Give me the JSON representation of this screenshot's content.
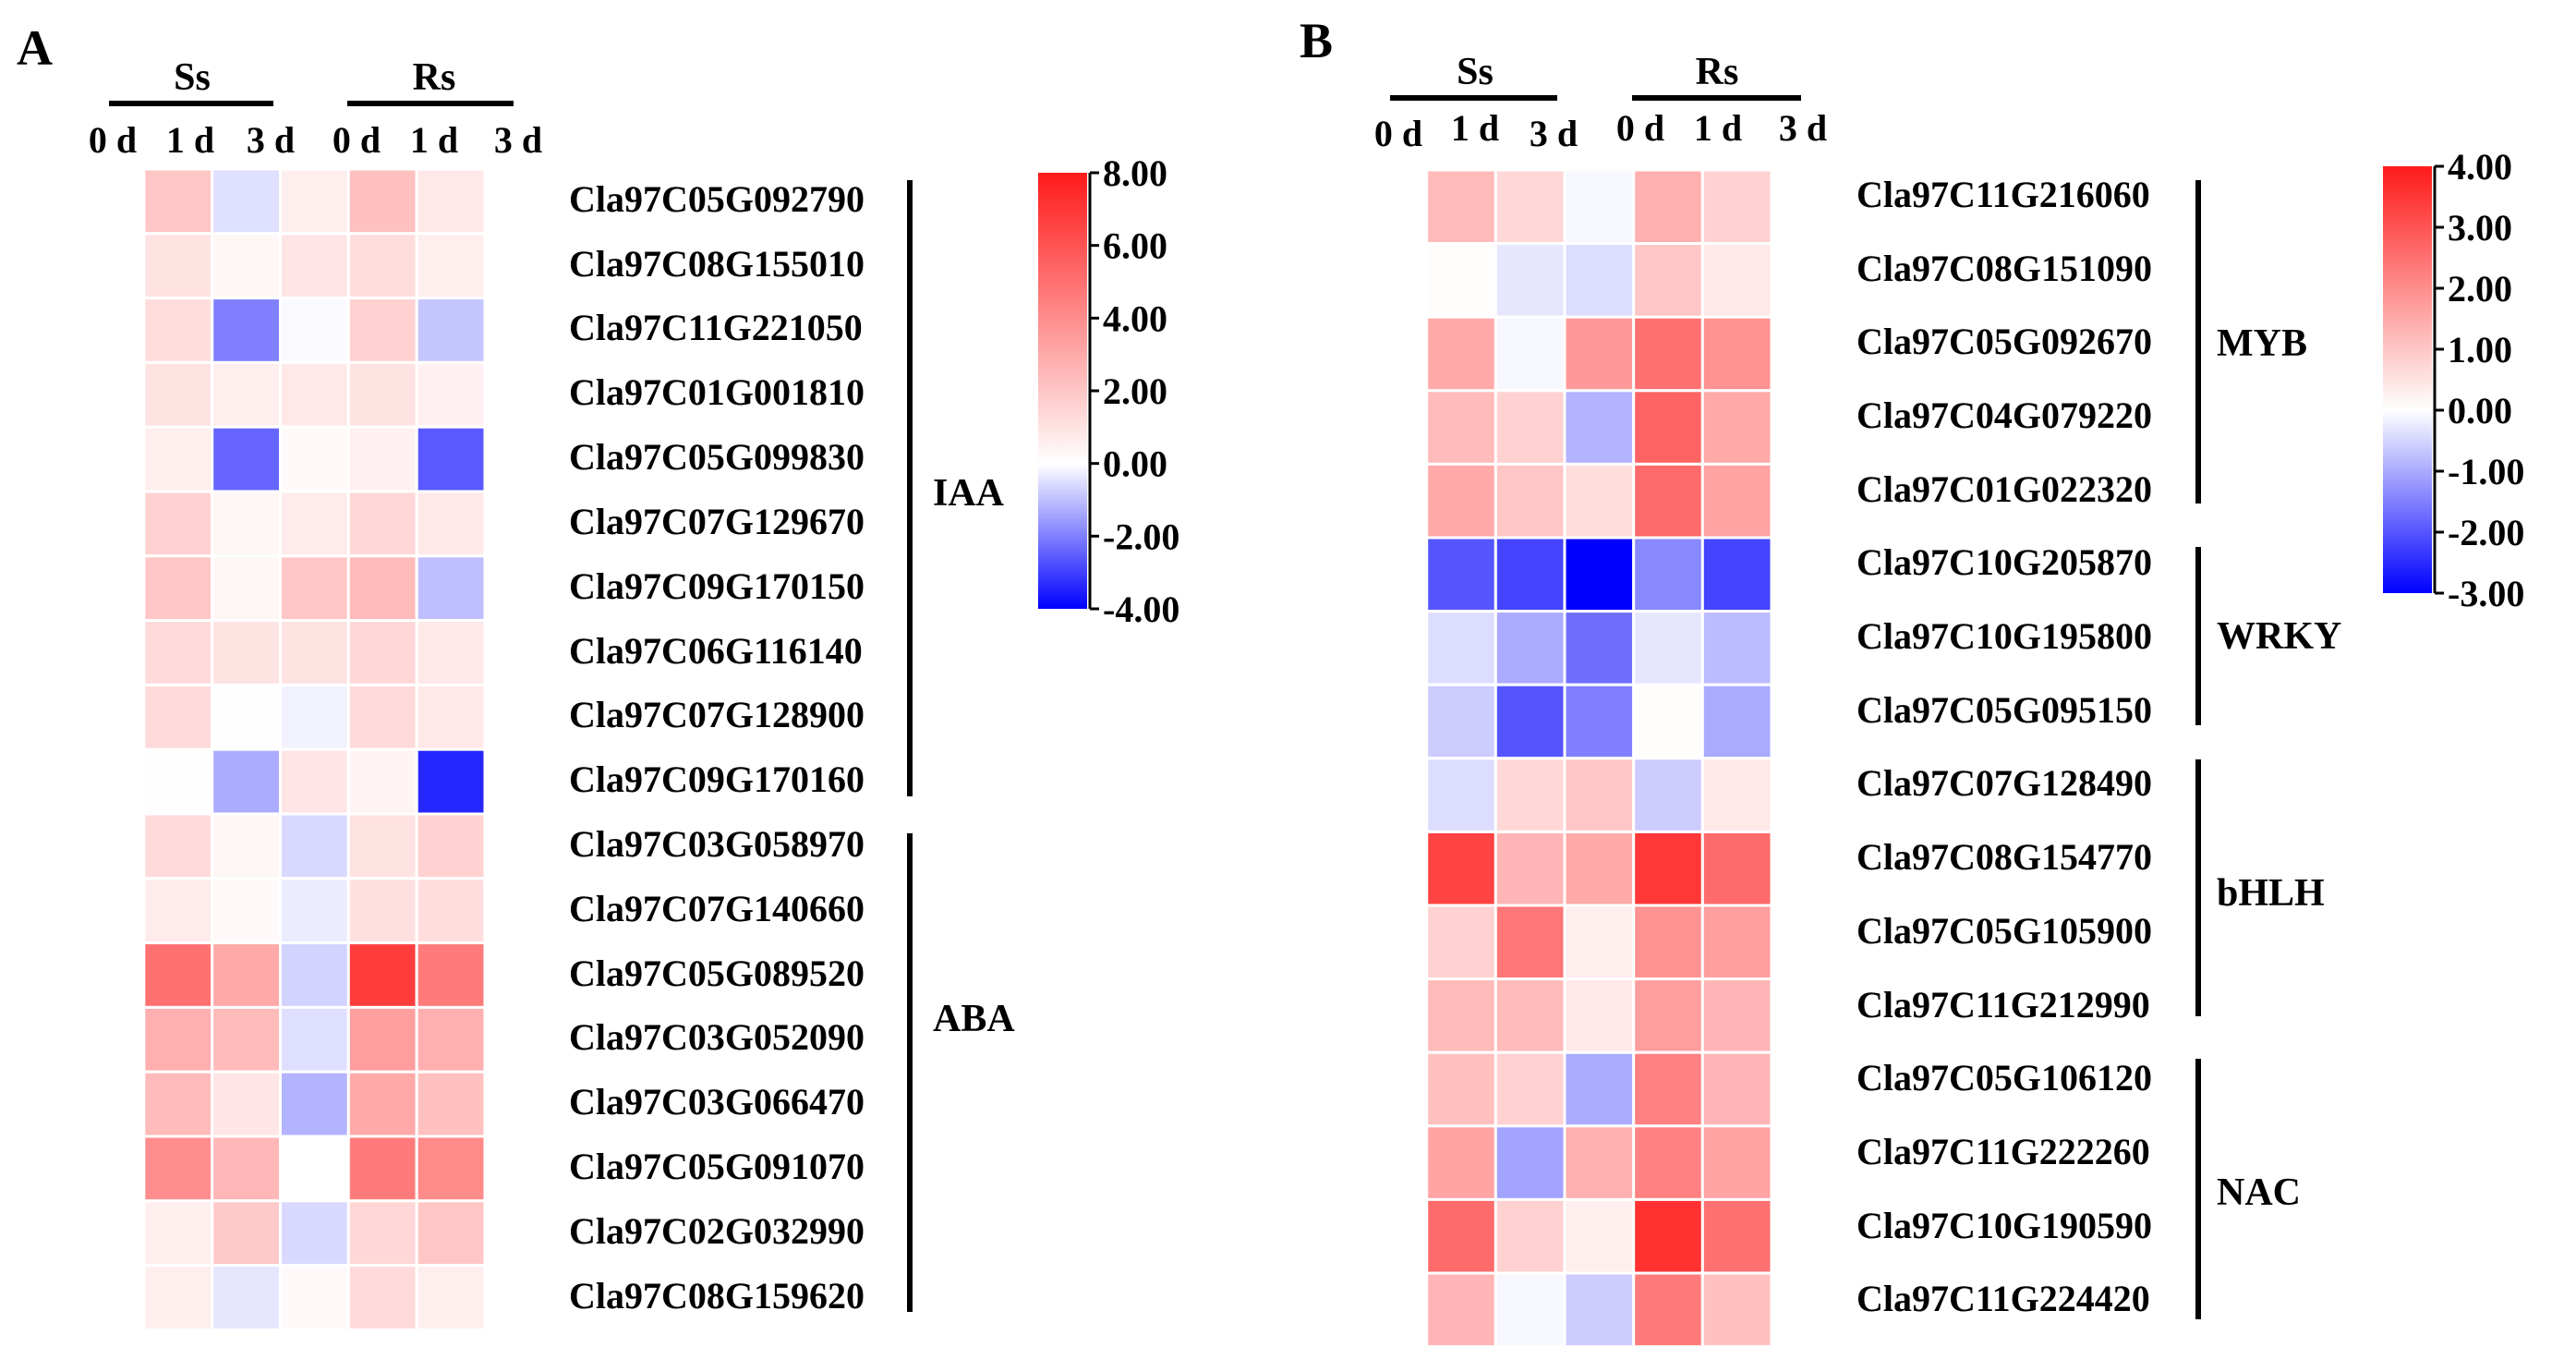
{
  "chart_data": [
    {
      "type": "heatmap",
      "panel": "A",
      "column_groups": [
        {
          "name": "Ss",
          "columns": [
            "0 d",
            "1 d",
            "3 d"
          ]
        },
        {
          "name": "Rs",
          "columns": [
            "0 d",
            "1 d",
            "3 d"
          ]
        }
      ],
      "rows": [
        "Cla97C05G092790",
        "Cla97C08G155010",
        "Cla97C11G221050",
        "Cla97C01G001810",
        "Cla97C05G099830",
        "Cla97C07G129670",
        "Cla97C09G170150",
        "Cla97C06G116140",
        "Cla97C07G128900",
        "Cla97C09G170160",
        "Cla97C03G058970",
        "Cla97C07G140660",
        "Cla97C05G089520",
        "Cla97C03G052090",
        "Cla97C03G066470",
        "Cla97C05G091070",
        "Cla97C02G032990",
        "Cla97C08G159620"
      ],
      "values": [
        [
          0,
          2.0,
          -0.5,
          0.6,
          2.2,
          0.8
        ],
        [
          0,
          1.0,
          0.3,
          0.9,
          1.2,
          0.6
        ],
        [
          0,
          1.2,
          -2.0,
          -0.1,
          1.6,
          -0.9
        ],
        [
          0,
          1.0,
          0.6,
          0.8,
          1.0,
          0.5
        ],
        [
          0,
          0.6,
          -2.4,
          0.2,
          0.5,
          -2.6
        ],
        [
          0,
          1.6,
          0.3,
          0.7,
          1.4,
          0.8
        ],
        [
          0,
          2.0,
          0.3,
          2.0,
          2.4,
          -1.0
        ],
        [
          0,
          1.3,
          1.0,
          1.0,
          1.4,
          0.8
        ],
        [
          0,
          1.3,
          0.05,
          -0.2,
          1.3,
          0.8
        ],
        [
          0,
          0.05,
          -1.3,
          0.9,
          0.4,
          -3.4
        ],
        [
          0,
          1.3,
          0.3,
          -0.6,
          1.0,
          1.6
        ],
        [
          0,
          0.7,
          0.2,
          -0.3,
          1.1,
          1.2
        ],
        [
          0,
          5.0,
          3.0,
          -0.7,
          6.8,
          4.6
        ],
        [
          0,
          2.8,
          2.4,
          -0.5,
          3.4,
          2.8
        ],
        [
          0,
          2.4,
          0.9,
          -1.2,
          3.0,
          2.2
        ],
        [
          0,
          4.0,
          2.5,
          0.0,
          4.6,
          4.1
        ],
        [
          0,
          0.6,
          1.9,
          -0.6,
          1.4,
          2.0
        ],
        [
          0,
          0.6,
          -0.4,
          0.2,
          1.3,
          0.6
        ]
      ],
      "row_categories": [
        {
          "name": "IAA",
          "rows": [
            0,
            9
          ]
        },
        {
          "name": "ABA",
          "rows": [
            10,
            17
          ]
        }
      ],
      "colorbar": {
        "min": -4.0,
        "max": 8.0,
        "ticks": [
          "8.00",
          "6.00",
          "4.00",
          "2.00",
          "0.00",
          "-2.00",
          "-4.00"
        ],
        "colors": [
          "#0000ff",
          "#ffffff",
          "#ff1a1a"
        ]
      }
    },
    {
      "type": "heatmap",
      "panel": "B",
      "column_groups": [
        {
          "name": "Ss",
          "columns": [
            "0 d",
            "1 d",
            "3 d"
          ]
        },
        {
          "name": "Rs",
          "columns": [
            "0 d",
            "1 d",
            "3 d"
          ]
        }
      ],
      "rows": [
        "Cla97C11G216060",
        "Cla97C08G151090",
        "Cla97C05G092670",
        "Cla97C04G079220",
        "Cla97C01G022320",
        "Cla97C10G205870",
        "Cla97C10G195800",
        "Cla97C05G095150",
        "Cla97C07G128490",
        "Cla97C08G154770",
        "Cla97C05G105900",
        "Cla97C11G212990",
        "Cla97C05G106120",
        "Cla97C11G222260",
        "Cla97C10G190590",
        "Cla97C11G224420"
      ],
      "values": [
        [
          0,
          1.2,
          0.7,
          -0.1,
          1.4,
          0.8
        ],
        [
          0,
          0.05,
          -0.3,
          -0.4,
          1.0,
          0.4
        ],
        [
          0,
          1.5,
          -0.1,
          1.8,
          2.5,
          1.9
        ],
        [
          0,
          1.2,
          0.8,
          -0.9,
          2.7,
          1.5
        ],
        [
          0,
          1.5,
          1.0,
          0.6,
          2.6,
          1.6
        ],
        [
          0,
          -2.0,
          -2.2,
          -3.0,
          -1.4,
          -2.2
        ],
        [
          0,
          -0.4,
          -1.0,
          -1.7,
          -0.3,
          -0.8
        ],
        [
          0,
          -0.6,
          -2.0,
          -1.5,
          0.05,
          -1.0
        ],
        [
          0,
          -0.4,
          0.7,
          1.0,
          -0.6,
          0.4
        ],
        [
          0,
          3.3,
          1.3,
          1.5,
          3.5,
          2.6
        ],
        [
          0,
          0.8,
          2.4,
          0.3,
          1.9,
          1.7
        ],
        [
          0,
          1.2,
          1.2,
          0.4,
          1.7,
          1.3
        ],
        [
          0,
          1.1,
          0.8,
          -1.0,
          2.2,
          1.3
        ],
        [
          0,
          1.6,
          -1.1,
          1.4,
          2.2,
          1.6
        ],
        [
          0,
          2.6,
          0.8,
          0.3,
          3.6,
          2.5
        ],
        [
          0,
          1.3,
          -0.1,
          -0.6,
          2.3,
          1.1
        ]
      ],
      "row_categories": [
        {
          "name": "MYB",
          "rows": [
            0,
            4
          ]
        },
        {
          "name": "WRKY",
          "rows": [
            5,
            7
          ]
        },
        {
          "name": "bHLH",
          "rows": [
            8,
            11
          ]
        },
        {
          "name": "NAC",
          "rows": [
            12,
            15
          ]
        }
      ],
      "colorbar": {
        "min": -3.0,
        "max": 4.0,
        "ticks": [
          "4.00",
          "3.00",
          "2.00",
          "1.00",
          "0.00",
          "-1.00",
          "-2.00",
          "-3.00"
        ],
        "colors": [
          "#0000ff",
          "#ffffff",
          "#ff1a1a"
        ]
      }
    }
  ]
}
